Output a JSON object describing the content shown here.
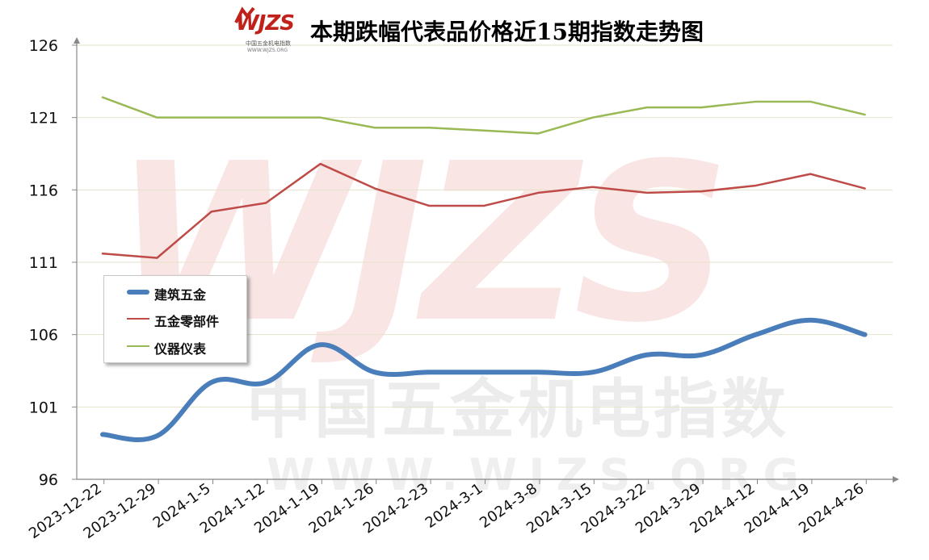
{
  "logo": {
    "text": "WJZS",
    "subtitle": "中国五金机电指数",
    "url": "WWW.WJZS.ORG"
  },
  "watermark": {
    "big": "WJZS",
    "cn": "中国五金机电指数",
    "url": "WWW.WJZS.ORG"
  },
  "colors": {
    "building": "#4a7ebb",
    "parts": "#be4b48",
    "instruments": "#98b954",
    "watermark": "#d23c2d"
  },
  "chart_data": {
    "type": "line",
    "title": "本期跌幅代表品价格近15期指数走势图",
    "categories": [
      "2023-12-22",
      "2023-12-29",
      "2024-1-5",
      "2024-1-12",
      "2024-1-19",
      "2024-1-26",
      "2024-2-23",
      "2024-3-1",
      "2024-3-8",
      "2024-3-15",
      "2024-3-22",
      "2024-3-29",
      "2024-4-12",
      "2024-4-19",
      "2024-4-26"
    ],
    "ylim": [
      96,
      126
    ],
    "yticks": [
      96,
      101,
      106,
      111,
      116,
      121,
      126
    ],
    "grid": true,
    "legend_position": "left-middle",
    "series": [
      {
        "name": "建筑五金",
        "color": "#4a7ebb",
        "smooth": true,
        "width": 6,
        "values": [
          99.1,
          99.0,
          102.7,
          102.7,
          105.3,
          103.4,
          103.4,
          103.4,
          103.4,
          103.4,
          104.6,
          104.6,
          106.0,
          107.0,
          106.0
        ]
      },
      {
        "name": "五金零部件",
        "color": "#be4b48",
        "smooth": false,
        "width": 2.5,
        "values": [
          111.6,
          111.3,
          114.5,
          115.1,
          117.8,
          116.1,
          114.9,
          114.9,
          115.8,
          116.2,
          115.8,
          115.9,
          116.3,
          117.1,
          116.1
        ]
      },
      {
        "name": "仪器仪表",
        "color": "#98b954",
        "smooth": false,
        "width": 2.5,
        "values": [
          122.4,
          121.0,
          121.0,
          121.0,
          121.0,
          120.3,
          120.3,
          120.1,
          119.9,
          121.0,
          121.7,
          121.7,
          122.1,
          122.1,
          121.2
        ]
      }
    ]
  }
}
